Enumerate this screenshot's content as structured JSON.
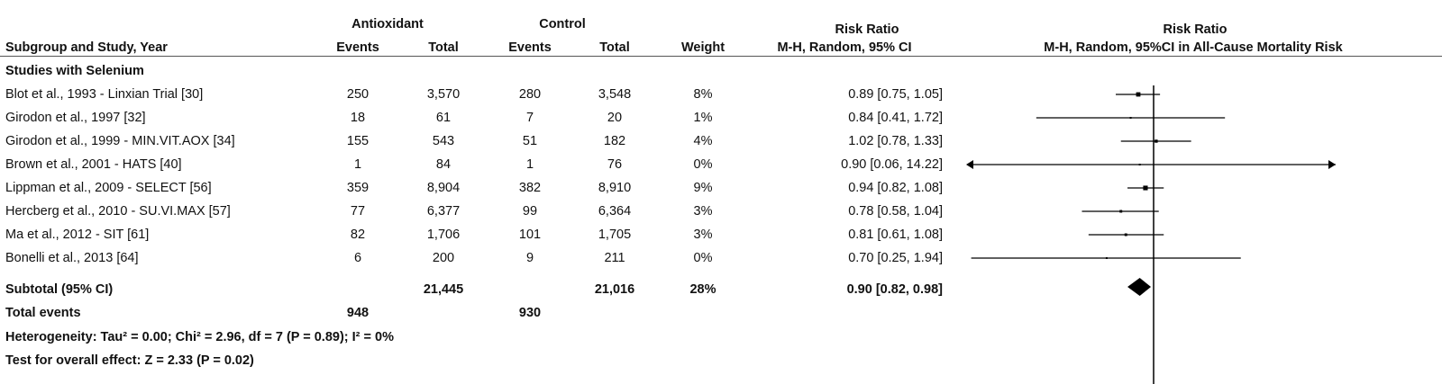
{
  "header": {
    "group_antioxidant": "Antioxidant",
    "group_control": "Control",
    "rr_title": "Risk Ratio",
    "plot_title": "Risk Ratio",
    "col_study": "Subgroup and Study, Year",
    "col_events_a": "Events",
    "col_total_a": "Total",
    "col_events_c": "Events",
    "col_total_c": "Total",
    "col_weight": "Weight",
    "col_ci": "M-H, Random, 95% CI",
    "plot_subtitle": "M-H, Random, 95%CI in All-Cause Mortality Risk"
  },
  "subgroup_title": "Studies with Selenium",
  "subtotal": {
    "label": "Subtotal (95% CI)",
    "total_a": "21,445",
    "total_c": "21,016",
    "weight": "28%",
    "ci": "0.90 [0.82, 0.98]"
  },
  "total_events": {
    "label": "Total events",
    "events_a": "948",
    "events_c": "930"
  },
  "heterogeneity": "Heterogeneity: Tau² = 0.00; Chi² = 2.96, df = 7 (P = 0.89); I² = 0%",
  "overall_effect": "Test for overall effect: Z = 2.33 (P = 0.02)",
  "chart_data": {
    "type": "forest",
    "null_value": 1,
    "x_scale": "log",
    "studies": [
      {
        "study": "Blot et al., 1993 - Linxian Trial [30]",
        "events_a": "250",
        "total_a": "3,570",
        "events_c": "280",
        "total_c": "3,548",
        "weight": "8%",
        "ci_text": "0.89 [0.75, 1.05]",
        "rr": 0.89,
        "lower": 0.75,
        "upper": 1.05,
        "w": 8
      },
      {
        "study": "Girodon et al., 1997 [32]",
        "events_a": "18",
        "total_a": "61",
        "events_c": "7",
        "total_c": "20",
        "weight": "1%",
        "ci_text": "0.84 [0.41, 1.72]",
        "rr": 0.84,
        "lower": 0.41,
        "upper": 1.72,
        "w": 1
      },
      {
        "study": "Girodon et al., 1999 - MIN.VIT.AOX [34]",
        "events_a": "155",
        "total_a": "543",
        "events_c": "51",
        "total_c": "182",
        "weight": "4%",
        "ci_text": "1.02 [0.78, 1.33]",
        "rr": 1.02,
        "lower": 0.78,
        "upper": 1.33,
        "w": 4
      },
      {
        "study": "Brown et al., 2001 - HATS [40]",
        "events_a": "1",
        "total_a": "84",
        "events_c": "1",
        "total_c": "76",
        "weight": "0%",
        "ci_text": "0.90 [0.06, 14.22]",
        "rr": 0.9,
        "lower": 0.06,
        "upper": 14.22,
        "w": 0
      },
      {
        "study": "Lippman et al., 2009 - SELECT [56]",
        "events_a": "359",
        "total_a": "8,904",
        "events_c": "382",
        "total_c": "8,910",
        "weight": "9%",
        "ci_text": "0.94 [0.82, 1.08]",
        "rr": 0.94,
        "lower": 0.82,
        "upper": 1.08,
        "w": 9
      },
      {
        "study": "Hercberg et al., 2010 - SU.VI.MAX [57]",
        "events_a": "77",
        "total_a": "6,377",
        "events_c": "99",
        "total_c": "6,364",
        "weight": "3%",
        "ci_text": "0.78 [0.58, 1.04]",
        "rr": 0.78,
        "lower": 0.58,
        "upper": 1.04,
        "w": 3
      },
      {
        "study": "Ma et al., 2012 - SIT [61]",
        "events_a": "82",
        "total_a": "1,706",
        "events_c": "101",
        "total_c": "1,705",
        "weight": "3%",
        "ci_text": "0.81 [0.61, 1.08]",
        "rr": 0.81,
        "lower": 0.61,
        "upper": 1.08,
        "w": 3
      },
      {
        "study": "Bonelli et al., 2013 [64]",
        "events_a": "6",
        "total_a": "200",
        "events_c": "9",
        "total_c": "211",
        "weight": "0%",
        "ci_text": "0.70 [0.25, 1.94]",
        "rr": 0.7,
        "lower": 0.25,
        "upper": 1.94,
        "w": 0
      }
    ],
    "pooled": {
      "rr": 0.9,
      "lower": 0.82,
      "upper": 0.98
    }
  }
}
